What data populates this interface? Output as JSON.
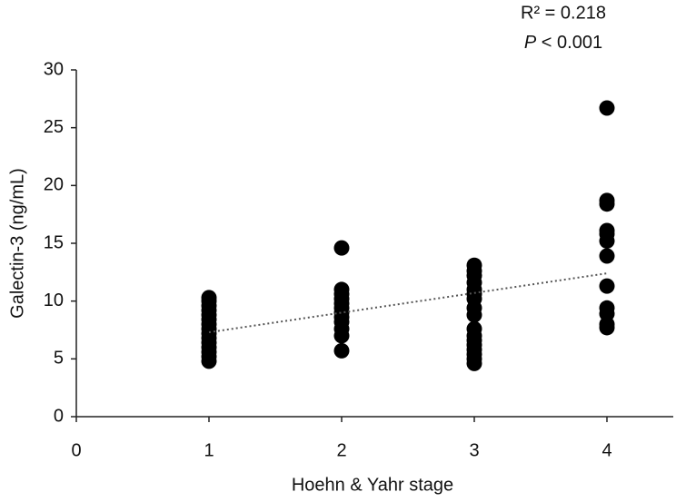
{
  "chart_data": {
    "type": "scatter",
    "xlabel": "Hoehn & Yahr stage",
    "ylabel": "Galectin-3 (ng/mL)",
    "annotation": "R² = 0.218",
    "p_value": {
      "symbol": "P",
      "text": " < 0.001"
    },
    "xlim": [
      0,
      4.5
    ],
    "xticks": [
      0,
      1,
      2,
      3,
      4
    ],
    "ylim": [
      0,
      30
    ],
    "yticks": [
      0,
      5,
      10,
      15,
      20,
      25,
      30
    ],
    "series": [
      {
        "color": "#000000",
        "x": [
          1,
          1,
          1,
          1,
          1,
          1,
          1,
          1,
          1,
          1,
          1,
          1,
          1,
          1,
          1,
          2,
          2,
          2,
          2,
          2,
          2,
          2,
          2,
          2,
          2,
          2,
          2,
          3,
          3,
          3,
          3,
          3,
          3,
          3,
          3,
          3,
          3,
          3,
          3,
          3,
          3,
          3,
          3,
          3,
          4,
          4,
          4,
          4,
          4,
          4,
          4,
          4,
          4,
          4,
          4,
          4
        ],
        "values": [
          10.3,
          10.0,
          9.6,
          9.2,
          8.8,
          8.4,
          8.0,
          7.6,
          7.2,
          6.8,
          6.4,
          6.0,
          5.6,
          5.2,
          4.8,
          14.6,
          11.0,
          10.6,
          10.2,
          9.8,
          9.4,
          9.0,
          8.6,
          8.2,
          7.6,
          7.0,
          5.7,
          13.1,
          12.6,
          12.2,
          11.6,
          11.0,
          10.6,
          10.2,
          9.4,
          8.8,
          7.6,
          7.0,
          6.6,
          6.2,
          5.8,
          5.4,
          5.0,
          4.6,
          26.7,
          18.7,
          18.4,
          16.1,
          15.8,
          15.2,
          13.9,
          11.3,
          9.4,
          8.9,
          8.0,
          7.7
        ]
      }
    ],
    "trendline": {
      "x": [
        1,
        4
      ],
      "values": [
        7.3,
        12.4
      ],
      "color": "#555555"
    }
  }
}
